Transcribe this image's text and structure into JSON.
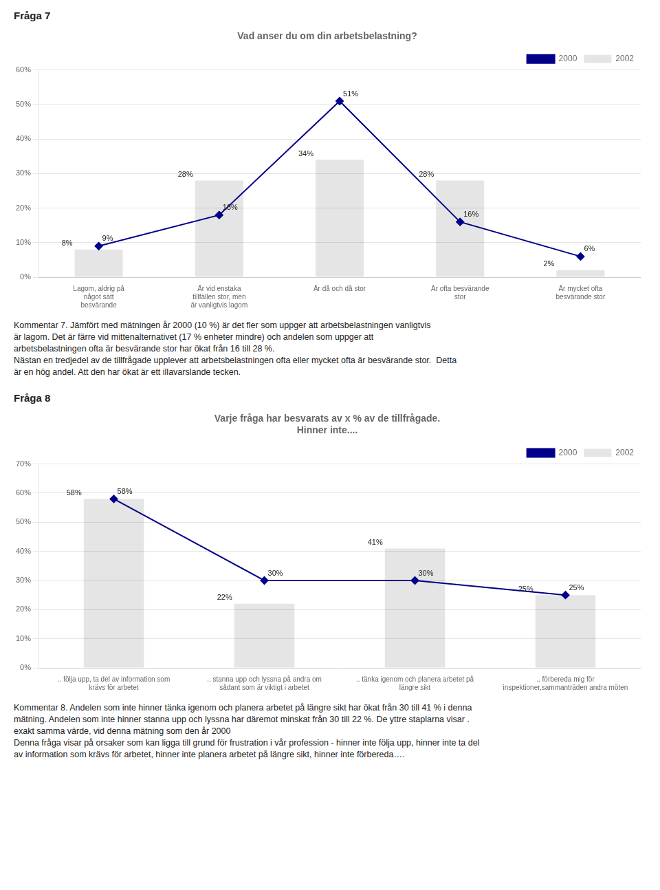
{
  "chart_data": [
    {
      "type": "bar",
      "heading": "Fråga 7",
      "title": "Vad anser du om din arbetsbelastning?",
      "categories": [
        "Lagom, aldrig på\nnågot sätt\nbesvärande",
        "Är vid enstaka\ntillfällen stor, men\när vanligtvis lagom",
        "Är då och då stor",
        "Är ofta besvärande\nstor",
        "Är mycket ofta\nbesvärande stor"
      ],
      "series": [
        {
          "name": "2002",
          "type": "bar",
          "values": [
            8,
            28,
            34,
            28,
            2
          ],
          "value_labels": [
            "8%",
            "28%",
            "34%",
            "28%",
            "2%"
          ]
        },
        {
          "name": "2000",
          "type": "line",
          "color": "#00008B",
          "marker": "diamond",
          "line_style": "solid",
          "values": [
            9,
            18,
            51,
            16,
            6
          ],
          "value_labels": [
            "9%",
            "18%",
            "51%",
            "16%",
            "6%"
          ]
        }
      ],
      "ylim": [
        0,
        60
      ],
      "yticks": [
        {
          "value": 0,
          "label": "0%"
        },
        {
          "value": 10,
          "label": "10%"
        },
        {
          "value": 20,
          "label": "20%"
        },
        {
          "value": 30,
          "label": "30%"
        },
        {
          "value": 40,
          "label": "40%"
        },
        {
          "value": 50,
          "label": "50%"
        },
        {
          "value": 60,
          "label": "60%"
        }
      ],
      "grid": true,
      "legend": "upper right",
      "data_labels": true,
      "annotations": [
        "Kommentar 7. Jämfört med mätningen år 2000 (10 %) är det fler som uppger att arbetsbelastningen vanligtvis",
        "är lagom. Det är färre vid mittenalternativet (17 % enheter mindre) och andelen som uppger att",
        "arbetsbelastningen ofta är besvärande stor har ökat från 16 till 28 %.",
        "Nästan en tredjedel av de tillfrågade upplever att arbetsbelastningen ofta eller mycket ofta är besvärande stor.  Detta",
        "är en hög andel. Att den har ökat är ett illavarslande tecken."
      ]
    },
    {
      "type": "bar",
      "heading": "Fråga 8",
      "title": [
        "Varje fråga har besvarats av x % av de tillfrågade.",
        "Hinner inte...."
      ],
      "categories": [
        ".. följa upp, ta del av information som\nkrävs för arbetet",
        ".. stanna upp och lyssna på andra om\nsådant som är viktigt i arbetet",
        ".. tänka igenom och planera arbetet på\nlängre sikt",
        ".. förbereda mig för\ninspektioner,sammanträden andra möten"
      ],
      "series": [
        {
          "name": "2002",
          "type": "bar",
          "values": [
            58,
            22,
            41,
            25
          ],
          "value_labels": [
            "58%",
            "22%",
            "41%",
            "25%"
          ]
        },
        {
          "name": "2000",
          "type": "line",
          "color": "#00008B",
          "marker": "diamond",
          "line_style": "solid",
          "values": [
            58,
            30,
            30,
            25
          ],
          "value_labels": [
            "58%",
            "30%",
            "30%",
            "25%"
          ]
        }
      ],
      "ylim": [
        0,
        70
      ],
      "yticks": [
        {
          "value": 0,
          "label": "0%"
        },
        {
          "value": 10,
          "label": "10%"
        },
        {
          "value": 20,
          "label": "20%"
        },
        {
          "value": 30,
          "label": "30%"
        },
        {
          "value": 40,
          "label": "40%"
        },
        {
          "value": 50,
          "label": "50%"
        },
        {
          "value": 60,
          "label": "60%"
        },
        {
          "value": 70,
          "label": "70%"
        }
      ],
      "grid": true,
      "legend": "upper right",
      "data_labels": true,
      "annotations": [
        "Kommentar 8. Andelen som inte hinner tänka igenom och planera arbetet på längre sikt har ökat från 30 till 41 % i denna",
        "mätning. Andelen som inte hinner stanna upp och lyssna har däremot minskat från 30 till 22 %. De yttre staplarna visar .",
        "exakt samma värde, vid denna mätning som den år 2000",
        "Denna fråga visar på orsaker som kan ligga till grund för frustration i vår profession - hinner inte följa upp, hinner inte ta del",
        "av information som krävs för arbetet, hinner inte planera arbetet på längre sikt, hinner inte förbereda…."
      ]
    }
  ]
}
